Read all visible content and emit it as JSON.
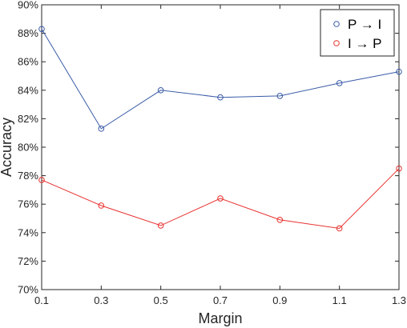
{
  "chart_data": {
    "type": "line",
    "xlabel": "Margin",
    "ylabel": "Accuracy",
    "x": [
      0.1,
      0.3,
      0.5,
      0.7,
      0.9,
      1.1,
      1.3
    ],
    "x_tick_labels": [
      "0.1",
      "0.3",
      "0.5",
      "0.7",
      "0.9",
      "1.1",
      "1.3"
    ],
    "xlim": [
      0.1,
      1.3
    ],
    "ylim": [
      70,
      90
    ],
    "y_ticks": [
      70,
      72,
      74,
      76,
      78,
      80,
      82,
      84,
      86,
      88,
      90
    ],
    "y_tick_labels": [
      "70%",
      "72%",
      "74%",
      "76%",
      "78%",
      "80%",
      "82%",
      "84%",
      "86%",
      "88%",
      "90%"
    ],
    "grid": false,
    "legend_position": "top-right",
    "series": [
      {
        "name": "P → I",
        "color": "#3a5ba8",
        "marker": "circle",
        "values": [
          88.3,
          81.3,
          84.0,
          83.5,
          83.6,
          84.5,
          85.3
        ]
      },
      {
        "name": "I → P",
        "color": "#e8312f",
        "marker": "circle",
        "values": [
          77.7,
          75.9,
          74.5,
          76.4,
          74.9,
          74.3,
          78.5
        ]
      }
    ]
  }
}
